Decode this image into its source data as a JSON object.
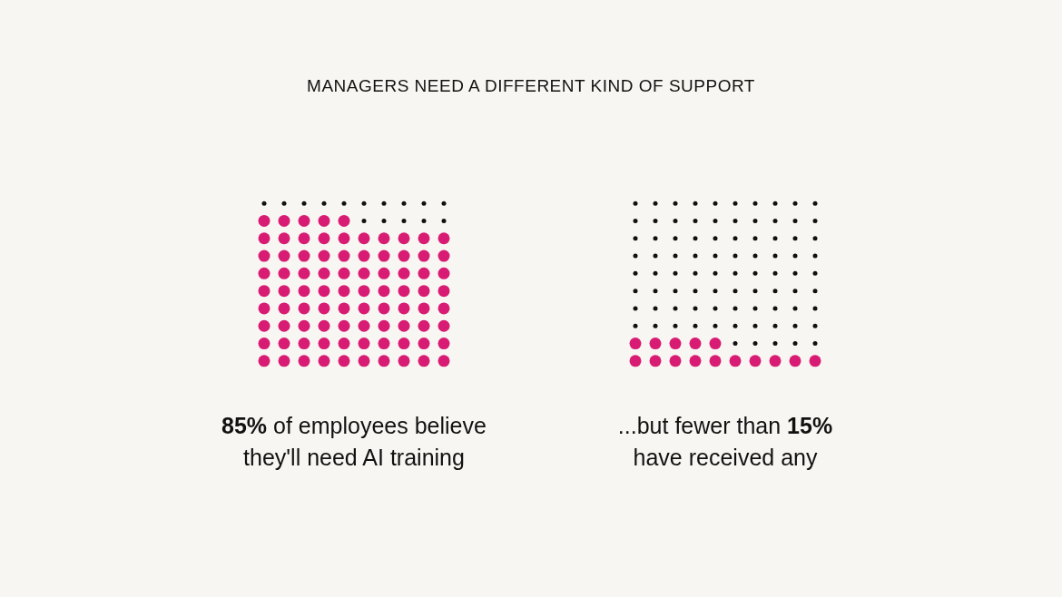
{
  "chart_data": [
    {
      "type": "other",
      "title": "MANAGERS NEED A DIFFERENT KIND OF SUPPORT",
      "values": [
        85
      ],
      "color": "#d81b73",
      "value_labels": [
        "85%"
      ],
      "annotations": [
        "of employees believe they'll need AI training"
      ]
    },
    {
      "type": "other",
      "values": [
        15
      ],
      "color": "#d81b73",
      "value_labels": [
        "15%"
      ],
      "annotations": [
        "...but fewer than",
        "have received any"
      ]
    }
  ]
}
